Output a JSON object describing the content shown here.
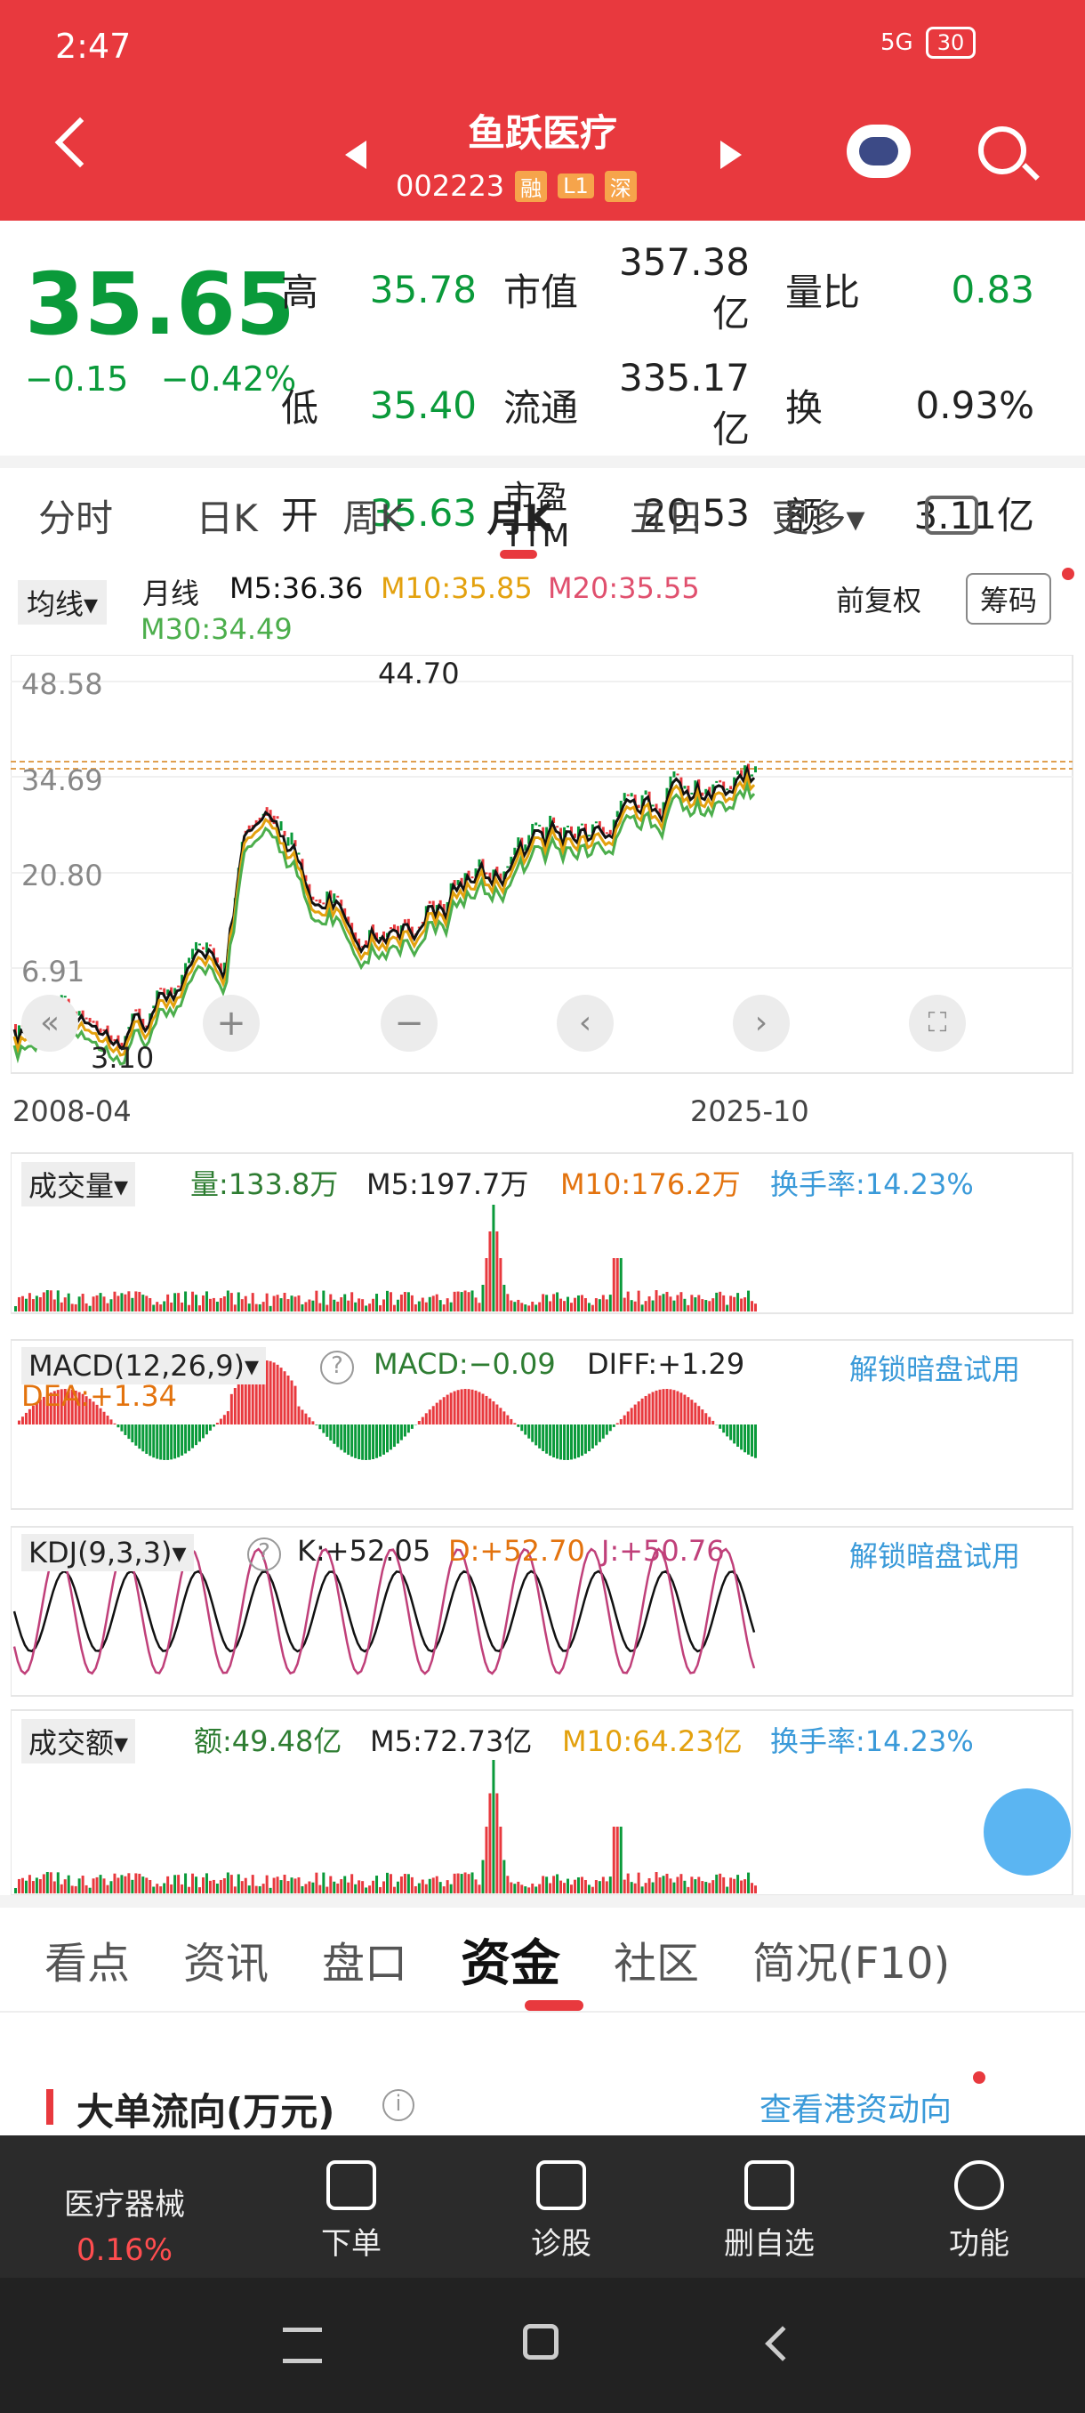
{
  "status": {
    "time": "2:47",
    "signal": "5G",
    "battery": "30"
  },
  "header": {
    "title": "鱼跃医疗",
    "code": "002223",
    "tags": [
      "融",
      "L1",
      "深"
    ]
  },
  "quote": {
    "price": "35.65",
    "change": "−0.15",
    "change_pct": "−0.42%",
    "rows": [
      {
        "l1": "高",
        "v1": "35.78",
        "l2": "市值",
        "v2": "357.38亿",
        "l3": "量比",
        "v3": "0.83"
      },
      {
        "l1": "低",
        "v1": "35.40",
        "l2": "流通",
        "v2": "335.17亿",
        "l3": "换",
        "v3": "0.93%"
      },
      {
        "l1": "开",
        "v1": "35.63",
        "l2": "市盈TTM",
        "v2": "20.53",
        "l3": "额",
        "v3": "3.11亿"
      }
    ]
  },
  "tabs": [
    "分时",
    "日K",
    "周K",
    "月K",
    "五日",
    "更多▾"
  ],
  "kline": {
    "ma_btn": "均线▾",
    "period": "月线",
    "m5": "M5:36.36",
    "m10": "M10:35.85",
    "m20": "M20:35.55",
    "m30": "M30:34.49",
    "adj": "前复权",
    "chip": "筹码",
    "yticks": [
      "48.58",
      "34.69",
      "20.80",
      "6.91"
    ],
    "high_mark": "44.70",
    "low_mark": "3.10",
    "date_start": "2008-04",
    "date_end": "2025-10"
  },
  "vol": {
    "label": "成交量▾",
    "v": "量:133.8万",
    "m5": "M5:197.7万",
    "m10": "M10:176.2万",
    "turn": "换手率:14.23%"
  },
  "macd": {
    "label": "MACD(12,26,9)▾",
    "v": "MACD:−0.09",
    "diff": "DIFF:+1.29",
    "dea": "DEA:+1.34",
    "unlock": "解锁暗盘试用"
  },
  "kdj": {
    "label": "KDJ(9,3,3)▾",
    "k": "K:+52.05",
    "d": "D:+52.70",
    "j": "J:+50.76",
    "unlock": "解锁暗盘试用"
  },
  "amt": {
    "label": "成交额▾",
    "v": "额:49.48亿",
    "m5": "M5:72.73亿",
    "m10": "M10:64.23亿",
    "turn": "换手率:14.23%"
  },
  "bottom_tabs": [
    "看点",
    "资讯",
    "盘口",
    "资金",
    "社区",
    "简况(F10)"
  ],
  "section": {
    "title": "大单流向(万元)",
    "link": "查看港资动向"
  },
  "nav": [
    {
      "label": "医疗器械",
      "sub": "0.16%"
    },
    {
      "label": "下单"
    },
    {
      "label": "诊股"
    },
    {
      "label": "删自选"
    },
    {
      "label": "功能"
    }
  ],
  "colors": {
    "red": "#e8393e",
    "green": "#0a9a3a"
  }
}
